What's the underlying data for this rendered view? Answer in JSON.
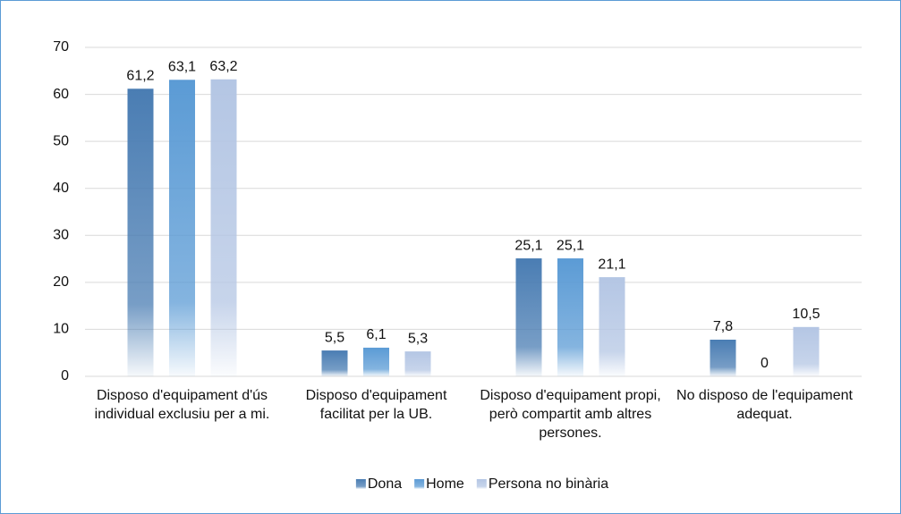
{
  "chart_data": {
    "type": "bar",
    "categories": [
      "Disposo d'equipament d'ús individual exclusiu per a mi.",
      "Disposo d'equipament facilitat per la UB.",
      "Disposo d'equipament propi, però compartit amb altres persones.",
      "No disposo de l'equipament adequat."
    ],
    "series": [
      {
        "name": "Dona",
        "color": "#4a7db3",
        "values": [
          61.2,
          5.5,
          25.1,
          7.8
        ],
        "value_labels": [
          "61,2",
          "5,5",
          "25,1",
          "7,8"
        ]
      },
      {
        "name": "Home",
        "color": "#5b9bd5",
        "values": [
          63.1,
          6.1,
          25.1,
          0
        ],
        "value_labels": [
          "63,1",
          "6,1",
          "25,1",
          "0"
        ]
      },
      {
        "name": "Persona no binària",
        "color": "#b4c6e4",
        "values": [
          63.2,
          5.3,
          21.1,
          10.5
        ],
        "value_labels": [
          "63,2",
          "5,3",
          "21,1",
          "10,5"
        ]
      }
    ],
    "ylim": [
      0,
      70
    ],
    "yticks": [
      0,
      10,
      20,
      30,
      40,
      50,
      60,
      70
    ],
    "grid": true,
    "legend": "bottom"
  }
}
